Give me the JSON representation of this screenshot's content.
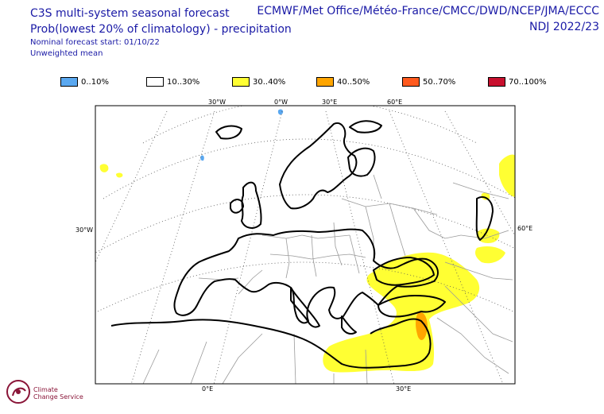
{
  "header": {
    "title_line1": "C3S multi-system seasonal forecast",
    "title_line2": "Prob(lowest 20% of climatology) - precipitation",
    "nominal_start": "Nominal forecast start: 01/10/22",
    "mean_type": "Unweighted mean",
    "centres": "ECMWF/Met Office/Météo-France/CMCC/DWD/NCEP/JMA/ECCC",
    "period": "NDJ 2022/23"
  },
  "legend": [
    {
      "label": "0..10%",
      "color": "#5aa8f0"
    },
    {
      "label": "10..30%",
      "color": "#ffffff"
    },
    {
      "label": "30..40%",
      "color": "#ffff33"
    },
    {
      "label": "40..50%",
      "color": "#ffa500"
    },
    {
      "label": "50..70%",
      "color": "#ff5a1e"
    },
    {
      "label": "70..100%",
      "color": "#c8102e"
    }
  ],
  "graticule_labels": {
    "top": [
      "30°W",
      "0°W",
      "30°E",
      "60°E"
    ],
    "left": "30°W",
    "right": "60°E",
    "bottom": [
      "0°E",
      "30°E"
    ]
  },
  "logo": {
    "line1": "Climate",
    "line2": "Change Service"
  }
}
